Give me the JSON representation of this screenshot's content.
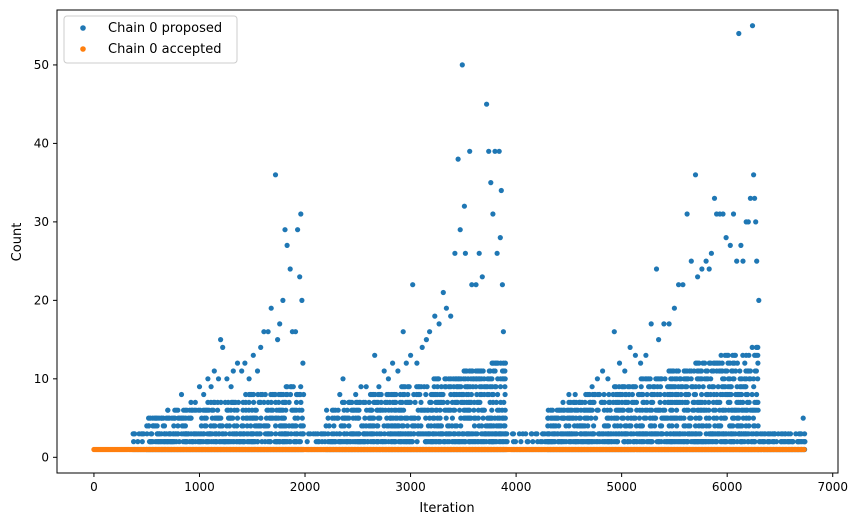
{
  "chart_data": {
    "type": "scatter",
    "title": "",
    "xlabel": "Iteration",
    "ylabel": "Count",
    "xlim": [
      -350,
      7050
    ],
    "ylim": [
      -2,
      57
    ],
    "xticks": [
      0,
      1000,
      2000,
      3000,
      4000,
      5000,
      6000,
      7000
    ],
    "yticks": [
      0,
      10,
      20,
      30,
      40,
      50
    ],
    "legend_placement": "top-left",
    "grid": false,
    "series": [
      {
        "name": "Chain 0 proposed",
        "color": "#1f77b4",
        "points": [
          [
            380,
            3
          ],
          [
            450,
            3
          ],
          [
            520,
            4
          ],
          [
            560,
            4
          ],
          [
            640,
            5
          ],
          [
            700,
            6
          ],
          [
            740,
            5
          ],
          [
            780,
            6
          ],
          [
            830,
            8
          ],
          [
            880,
            6
          ],
          [
            920,
            7
          ],
          [
            960,
            7
          ],
          [
            1000,
            9
          ],
          [
            1040,
            8
          ],
          [
            1080,
            10
          ],
          [
            1110,
            9
          ],
          [
            1140,
            11
          ],
          [
            1180,
            10
          ],
          [
            1200,
            15
          ],
          [
            1220,
            14
          ],
          [
            1260,
            10
          ],
          [
            1300,
            9
          ],
          [
            1320,
            11
          ],
          [
            1360,
            12
          ],
          [
            1400,
            11
          ],
          [
            1430,
            12
          ],
          [
            1470,
            10
          ],
          [
            1510,
            13
          ],
          [
            1550,
            11
          ],
          [
            1580,
            14
          ],
          [
            1610,
            16
          ],
          [
            1650,
            16
          ],
          [
            1680,
            19
          ],
          [
            1720,
            36
          ],
          [
            1740,
            15
          ],
          [
            1760,
            17
          ],
          [
            1790,
            20
          ],
          [
            1810,
            29
          ],
          [
            1830,
            27
          ],
          [
            1860,
            24
          ],
          [
            1880,
            16
          ],
          [
            1910,
            16
          ],
          [
            1930,
            29
          ],
          [
            1950,
            23
          ],
          [
            1960,
            31
          ],
          [
            1970,
            20
          ],
          [
            1980,
            12
          ],
          [
            2100,
            3
          ],
          [
            2200,
            4
          ],
          [
            2280,
            5
          ],
          [
            2330,
            8
          ],
          [
            2360,
            10
          ],
          [
            2420,
            7
          ],
          [
            2480,
            8
          ],
          [
            2530,
            9
          ],
          [
            2580,
            9
          ],
          [
            2620,
            8
          ],
          [
            2660,
            13
          ],
          [
            2700,
            9
          ],
          [
            2750,
            11
          ],
          [
            2790,
            10
          ],
          [
            2830,
            12
          ],
          [
            2880,
            11
          ],
          [
            2930,
            16
          ],
          [
            2960,
            12
          ],
          [
            3000,
            13
          ],
          [
            3020,
            22
          ],
          [
            3060,
            12
          ],
          [
            3110,
            14
          ],
          [
            3150,
            15
          ],
          [
            3180,
            16
          ],
          [
            3230,
            18
          ],
          [
            3270,
            17
          ],
          [
            3310,
            21
          ],
          [
            3340,
            19
          ],
          [
            3380,
            18
          ],
          [
            3420,
            26
          ],
          [
            3450,
            38
          ],
          [
            3470,
            29
          ],
          [
            3490,
            50
          ],
          [
            3510,
            32
          ],
          [
            3520,
            26
          ],
          [
            3560,
            39
          ],
          [
            3580,
            22
          ],
          [
            3620,
            22
          ],
          [
            3650,
            26
          ],
          [
            3680,
            23
          ],
          [
            3720,
            45
          ],
          [
            3740,
            39
          ],
          [
            3760,
            35
          ],
          [
            3780,
            31
          ],
          [
            3800,
            39
          ],
          [
            3820,
            26
          ],
          [
            3840,
            39
          ],
          [
            3850,
            28
          ],
          [
            3860,
            34
          ],
          [
            3870,
            22
          ],
          [
            3880,
            16
          ],
          [
            4150,
            3
          ],
          [
            4250,
            3
          ],
          [
            4300,
            5
          ],
          [
            4350,
            4
          ],
          [
            4450,
            5
          ],
          [
            4500,
            8
          ],
          [
            4560,
            8
          ],
          [
            4600,
            7
          ],
          [
            4660,
            8
          ],
          [
            4720,
            9
          ],
          [
            4770,
            10
          ],
          [
            4820,
            11
          ],
          [
            4870,
            10
          ],
          [
            4930,
            16
          ],
          [
            4980,
            12
          ],
          [
            5030,
            11
          ],
          [
            5080,
            14
          ],
          [
            5130,
            13
          ],
          [
            5180,
            12
          ],
          [
            5230,
            13
          ],
          [
            5280,
            17
          ],
          [
            5330,
            24
          ],
          [
            5350,
            15
          ],
          [
            5400,
            17
          ],
          [
            5450,
            17
          ],
          [
            5500,
            19
          ],
          [
            5540,
            22
          ],
          [
            5580,
            22
          ],
          [
            5620,
            31
          ],
          [
            5660,
            25
          ],
          [
            5700,
            36
          ],
          [
            5720,
            23
          ],
          [
            5760,
            24
          ],
          [
            5800,
            25
          ],
          [
            5830,
            24
          ],
          [
            5850,
            26
          ],
          [
            5880,
            33
          ],
          [
            5900,
            31
          ],
          [
            5930,
            31
          ],
          [
            5960,
            31
          ],
          [
            5990,
            28
          ],
          [
            6030,
            27
          ],
          [
            6060,
            31
          ],
          [
            6090,
            25
          ],
          [
            6110,
            54
          ],
          [
            6130,
            27
          ],
          [
            6150,
            25
          ],
          [
            6180,
            30
          ],
          [
            6200,
            30
          ],
          [
            6220,
            33
          ],
          [
            6240,
            55
          ],
          [
            6250,
            36
          ],
          [
            6260,
            33
          ],
          [
            6270,
            30
          ],
          [
            6280,
            25
          ],
          [
            6300,
            20
          ],
          [
            6350,
            3
          ],
          [
            6450,
            3
          ],
          [
            6550,
            3
          ],
          [
            6600,
            3
          ],
          [
            6650,
            3
          ],
          [
            6700,
            3
          ],
          [
            6720,
            5
          ]
        ],
        "dense_bands": [
          {
            "x": [
              370,
              1990
            ],
            "y": [
              1,
              3
            ]
          },
          {
            "x": [
              500,
              1990
            ],
            "y": [
              1,
              5
            ],
            "ramp_to": 9
          },
          {
            "x": [
              2020,
              3910
            ],
            "y": [
              1,
              3
            ]
          },
          {
            "x": [
              2200,
              3900
            ],
            "y": [
              1,
              6
            ],
            "ramp_to": 12
          },
          {
            "x": [
              3960,
              6740
            ],
            "y": [
              1,
              3
            ]
          },
          {
            "x": [
              4300,
              6300
            ],
            "y": [
              1,
              6
            ],
            "ramp_to": 14
          },
          {
            "x": [
              6300,
              6740
            ],
            "y": [
              1,
              2
            ]
          }
        ]
      },
      {
        "name": "Chain 0 accepted",
        "color": "#ff7f0e",
        "x_range": [
          0,
          6730
        ],
        "value": 1
      }
    ]
  }
}
